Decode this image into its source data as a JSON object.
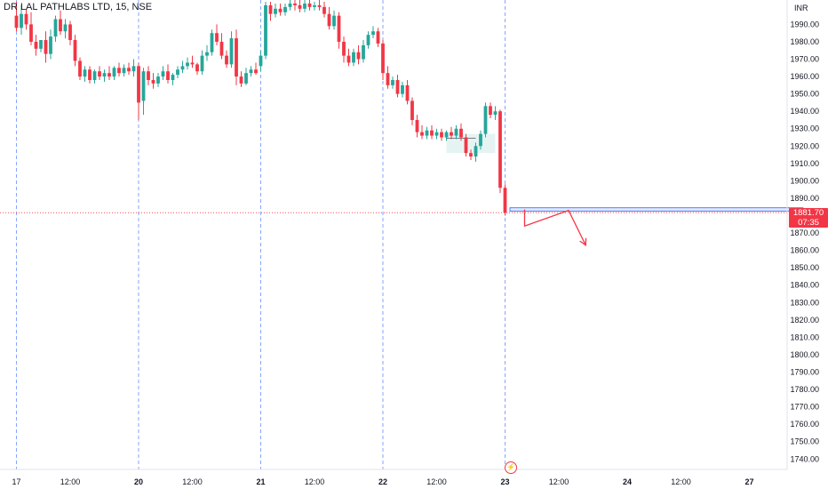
{
  "header": {
    "title": "DR LAL PATHLABS LTD, 15, NSE"
  },
  "price_axis": {
    "currency": "INR"
  },
  "last_price": {
    "value": "1881.70",
    "countdown": "07:35"
  },
  "icons": {
    "event_marker": "lightning-icon"
  },
  "colors": {
    "up": "#26a69a",
    "down": "#f23645",
    "grid": "#2962ff",
    "rect": "#2962ff"
  },
  "chart_data": {
    "type": "candlestick",
    "title": "DR LAL PATHLABS LTD, 15, NSE",
    "y_axis": {
      "unit": "INR",
      "ylim": [
        1734,
        2003
      ],
      "ticks": [
        1990,
        1980,
        1970,
        1960,
        1950,
        1940,
        1930,
        1920,
        1910,
        1900,
        1890,
        1870,
        1860,
        1850,
        1840,
        1830,
        1820,
        1810,
        1800,
        1790,
        1780,
        1770,
        1760,
        1750,
        1740
      ]
    },
    "x_axis": {
      "ticks": [
        {
          "label": "17",
          "bar": 0,
          "bold": false
        },
        {
          "label": "12:00",
          "bar": 11,
          "bold": false
        },
        {
          "label": "20",
          "bar": 25,
          "bold": true
        },
        {
          "label": "12:00",
          "bar": 36,
          "bold": false
        },
        {
          "label": "21",
          "bar": 50,
          "bold": true
        },
        {
          "label": "12:00",
          "bar": 61,
          "bold": false
        },
        {
          "label": "22",
          "bar": 75,
          "bold": true
        },
        {
          "label": "12:00",
          "bar": 86,
          "bold": false
        },
        {
          "label": "23",
          "bar": 100,
          "bold": true
        },
        {
          "label": "12:00",
          "bar": 111,
          "bold": false
        },
        {
          "label": "24",
          "bar": 125,
          "bold": true
        },
        {
          "label": "12:00",
          "bar": 136,
          "bold": false
        },
        {
          "label": "27",
          "bar": 150,
          "bold": true
        }
      ],
      "session_separators": [
        0,
        25,
        50,
        75,
        100
      ]
    },
    "last_price": 1881.7,
    "series": [
      {
        "o": 1995,
        "h": 2003,
        "c": 1988,
        "l": 1986
      },
      {
        "o": 1988,
        "h": 2001,
        "c": 1996,
        "l": 1984
      },
      {
        "o": 1996,
        "h": 1999,
        "c": 1990,
        "l": 1987
      },
      {
        "o": 1990,
        "h": 1997,
        "c": 1980,
        "l": 1978
      },
      {
        "o": 1980,
        "h": 1984,
        "c": 1976,
        "l": 1972
      },
      {
        "o": 1976,
        "h": 1981,
        "c": 1981,
        "l": 1974
      },
      {
        "o": 1981,
        "h": 1986,
        "c": 1973,
        "l": 1968
      },
      {
        "o": 1973,
        "h": 1987,
        "c": 1983,
        "l": 1970
      },
      {
        "o": 1983,
        "h": 1995,
        "c": 1993,
        "l": 1980
      },
      {
        "o": 1993,
        "h": 1998,
        "c": 1986,
        "l": 1984
      },
      {
        "o": 1986,
        "h": 1993,
        "c": 1990,
        "l": 1982
      },
      {
        "o": 1990,
        "h": 1992,
        "c": 1981,
        "l": 1978
      },
      {
        "o": 1981,
        "h": 1984,
        "c": 1969,
        "l": 1966
      },
      {
        "o": 1969,
        "h": 1971,
        "c": 1960,
        "l": 1958
      },
      {
        "o": 1960,
        "h": 1966,
        "c": 1964,
        "l": 1957
      },
      {
        "o": 1964,
        "h": 1966,
        "c": 1958,
        "l": 1956
      },
      {
        "o": 1958,
        "h": 1964,
        "c": 1963,
        "l": 1956
      },
      {
        "o": 1963,
        "h": 1966,
        "c": 1960,
        "l": 1958
      },
      {
        "o": 1960,
        "h": 1964,
        "c": 1962,
        "l": 1957
      },
      {
        "o": 1962,
        "h": 1966,
        "c": 1960,
        "l": 1958
      },
      {
        "o": 1960,
        "h": 1966,
        "c": 1965,
        "l": 1958
      },
      {
        "o": 1965,
        "h": 1968,
        "c": 1962,
        "l": 1960
      },
      {
        "o": 1962,
        "h": 1967,
        "c": 1965,
        "l": 1960
      },
      {
        "o": 1965,
        "h": 1968,
        "c": 1963,
        "l": 1961
      },
      {
        "o": 1963,
        "h": 1970,
        "c": 1966,
        "l": 1960
      },
      {
        "o": 1966,
        "h": 1968,
        "c": 1945,
        "l": 1935
      },
      {
        "o": 1946,
        "h": 1965,
        "c": 1963,
        "l": 1938
      },
      {
        "o": 1963,
        "h": 1966,
        "c": 1958,
        "l": 1955
      },
      {
        "o": 1958,
        "h": 1962,
        "c": 1956,
        "l": 1953
      },
      {
        "o": 1956,
        "h": 1962,
        "c": 1960,
        "l": 1954
      },
      {
        "o": 1960,
        "h": 1966,
        "c": 1963,
        "l": 1958
      },
      {
        "o": 1963,
        "h": 1967,
        "c": 1958,
        "l": 1956
      },
      {
        "o": 1958,
        "h": 1962,
        "c": 1961,
        "l": 1955
      },
      {
        "o": 1961,
        "h": 1966,
        "c": 1964,
        "l": 1959
      },
      {
        "o": 1964,
        "h": 1969,
        "c": 1966,
        "l": 1962
      },
      {
        "o": 1966,
        "h": 1971,
        "c": 1968,
        "l": 1964
      },
      {
        "o": 1968,
        "h": 1972,
        "c": 1967,
        "l": 1965
      },
      {
        "o": 1967,
        "h": 1968,
        "c": 1963,
        "l": 1961
      },
      {
        "o": 1963,
        "h": 1975,
        "c": 1972,
        "l": 1961
      },
      {
        "o": 1972,
        "h": 1978,
        "c": 1974,
        "l": 1969
      },
      {
        "o": 1974,
        "h": 1987,
        "c": 1985,
        "l": 1972
      },
      {
        "o": 1985,
        "h": 1990,
        "c": 1980,
        "l": 1978
      },
      {
        "o": 1980,
        "h": 1985,
        "c": 1972,
        "l": 1970
      },
      {
        "o": 1972,
        "h": 1975,
        "c": 1967,
        "l": 1965
      },
      {
        "o": 1967,
        "h": 1986,
        "c": 1982,
        "l": 1965
      },
      {
        "o": 1982,
        "h": 1987,
        "c": 1960,
        "l": 1955
      },
      {
        "o": 1960,
        "h": 1963,
        "c": 1956,
        "l": 1954
      },
      {
        "o": 1956,
        "h": 1965,
        "c": 1962,
        "l": 1955
      },
      {
        "o": 1962,
        "h": 1966,
        "c": 1964,
        "l": 1960
      },
      {
        "o": 1964,
        "h": 1968,
        "c": 1962,
        "l": 1961
      },
      {
        "o": 1966,
        "h": 1975,
        "c": 1972,
        "l": 1963
      },
      {
        "o": 1972,
        "h": 2003,
        "c": 2001,
        "l": 1970
      },
      {
        "o": 2001,
        "h": 2003,
        "c": 1996,
        "l": 1992
      },
      {
        "o": 1996,
        "h": 2002,
        "c": 1999,
        "l": 1994
      },
      {
        "o": 1999,
        "h": 2002,
        "c": 1997,
        "l": 1995
      },
      {
        "o": 1997,
        "h": 2002,
        "c": 2000,
        "l": 1995
      },
      {
        "o": 2000,
        "h": 2004,
        "c": 2002,
        "l": 1998
      },
      {
        "o": 2002,
        "h": 2004,
        "c": 2001,
        "l": 1998
      },
      {
        "o": 2001,
        "h": 2004,
        "c": 1999,
        "l": 1997
      },
      {
        "o": 1999,
        "h": 2004,
        "c": 2002,
        "l": 1997
      },
      {
        "o": 2002,
        "h": 2005,
        "c": 2000,
        "l": 1998
      },
      {
        "o": 2000,
        "h": 2003,
        "c": 2001,
        "l": 1998
      },
      {
        "o": 2001,
        "h": 2004,
        "c": 2000,
        "l": 1998
      },
      {
        "o": 2000,
        "h": 2003,
        "c": 1996,
        "l": 1994
      },
      {
        "o": 1996,
        "h": 2000,
        "c": 1989,
        "l": 1987
      },
      {
        "o": 1989,
        "h": 1998,
        "c": 1995,
        "l": 1987
      },
      {
        "o": 1995,
        "h": 1997,
        "c": 1980,
        "l": 1976
      },
      {
        "o": 1980,
        "h": 1983,
        "c": 1972,
        "l": 1968
      },
      {
        "o": 1972,
        "h": 1976,
        "c": 1968,
        "l": 1966
      },
      {
        "o": 1968,
        "h": 1976,
        "c": 1974,
        "l": 1966
      },
      {
        "o": 1974,
        "h": 1978,
        "c": 1970,
        "l": 1967
      },
      {
        "o": 1970,
        "h": 1981,
        "c": 1978,
        "l": 1968
      },
      {
        "o": 1978,
        "h": 1986,
        "c": 1984,
        "l": 1976
      },
      {
        "o": 1984,
        "h": 1989,
        "c": 1986,
        "l": 1982
      },
      {
        "o": 1986,
        "h": 1988,
        "c": 1979,
        "l": 1977
      },
      {
        "o": 1979,
        "h": 1981,
        "c": 1962,
        "l": 1958
      },
      {
        "o": 1962,
        "h": 1966,
        "c": 1955,
        "l": 1953
      },
      {
        "o": 1955,
        "h": 1960,
        "c": 1958,
        "l": 1953
      },
      {
        "o": 1958,
        "h": 1961,
        "c": 1950,
        "l": 1948
      },
      {
        "o": 1950,
        "h": 1957,
        "c": 1955,
        "l": 1948
      },
      {
        "o": 1955,
        "h": 1958,
        "c": 1946,
        "l": 1944
      },
      {
        "o": 1946,
        "h": 1948,
        "c": 1935,
        "l": 1932
      },
      {
        "o": 1935,
        "h": 1938,
        "c": 1928,
        "l": 1925
      },
      {
        "o": 1928,
        "h": 1932,
        "c": 1926,
        "l": 1924
      },
      {
        "o": 1926,
        "h": 1931,
        "c": 1929,
        "l": 1924
      },
      {
        "o": 1929,
        "h": 1932,
        "c": 1926,
        "l": 1924
      },
      {
        "o": 1926,
        "h": 1930,
        "c": 1928,
        "l": 1924
      },
      {
        "o": 1928,
        "h": 1930,
        "c": 1925,
        "l": 1923
      },
      {
        "o": 1925,
        "h": 1929,
        "c": 1928,
        "l": 1923
      },
      {
        "o": 1928,
        "h": 1931,
        "c": 1926,
        "l": 1924
      },
      {
        "o": 1926,
        "h": 1932,
        "c": 1930,
        "l": 1924
      },
      {
        "o": 1930,
        "h": 1933,
        "c": 1925,
        "l": 1923
      },
      {
        "o": 1925,
        "h": 1927,
        "c": 1916,
        "l": 1914
      },
      {
        "o": 1916,
        "h": 1918,
        "c": 1914,
        "l": 1912
      },
      {
        "o": 1914,
        "h": 1922,
        "c": 1920,
        "l": 1911
      },
      {
        "o": 1920,
        "h": 1929,
        "c": 1927,
        "l": 1918
      },
      {
        "o": 1927,
        "h": 1945,
        "c": 1943,
        "l": 1925
      },
      {
        "o": 1943,
        "h": 1945,
        "c": 1938,
        "l": 1936
      },
      {
        "o": 1938,
        "h": 1943,
        "c": 1940,
        "l": 1935
      },
      {
        "o": 1940,
        "h": 1941,
        "c": 1896,
        "l": 1893
      },
      {
        "o": 1896,
        "h": 1898,
        "c": 1881.7,
        "l": 1880
      }
    ],
    "drawings": {
      "rectangles": [
        {
          "bar_from": 88,
          "bar_to": 98,
          "y_from": 1927,
          "y_to": 1916,
          "fill": "rgba(38,166,154,0.12)"
        },
        {
          "bar_from": 101,
          "bar_to": 161,
          "y_from": 1884.5,
          "y_to": 1882.5,
          "fill": "rgba(41,98,255,0.15)"
        }
      ],
      "level_line": {
        "bar_from": 88,
        "bar_to": 94,
        "y": 1924.5
      },
      "projection_path": [
        {
          "bar": 104,
          "y": 1883.5
        },
        {
          "bar": 104,
          "y": 1874
        },
        {
          "bar": 113,
          "y": 1883
        },
        {
          "bar": 116.5,
          "y": 1863
        }
      ]
    }
  }
}
